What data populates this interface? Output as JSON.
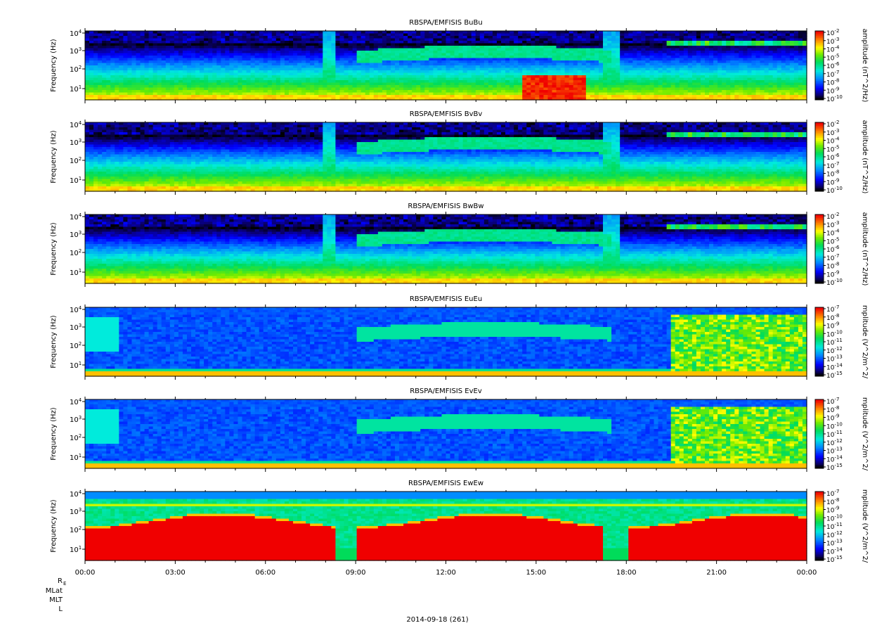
{
  "chart_data": [
    {
      "type": "heatmap",
      "title": "RBSPA/EMFISIS  BuBu",
      "ylabel": "Frequency (Hz)",
      "y_scale": "log",
      "y_ticks": [
        "10^1",
        "10^2",
        "10^3",
        "10^4"
      ],
      "colorbar_label": "amplitude (nT^2/Hz)",
      "colorbar_ticks": [
        "10^-2",
        "10^-3",
        "10^-4",
        "10^-5",
        "10^-6",
        "10^-7",
        "10^-8",
        "10^-9",
        "10^-10"
      ],
      "colorscale": "rainbow",
      "time_range": [
        "00:00",
        "00:00"
      ]
    },
    {
      "type": "heatmap",
      "title": "RBSPA/EMFISIS  BvBv",
      "ylabel": "Frequency (Hz)",
      "y_scale": "log",
      "y_ticks": [
        "10^1",
        "10^2",
        "10^3",
        "10^4"
      ],
      "colorbar_label": "amplitude (nT^2/Hz)",
      "colorbar_ticks": [
        "10^-2",
        "10^-3",
        "10^-4",
        "10^-5",
        "10^-6",
        "10^-7",
        "10^-8",
        "10^-9",
        "10^-10"
      ],
      "colorscale": "rainbow",
      "time_range": [
        "00:00",
        "00:00"
      ]
    },
    {
      "type": "heatmap",
      "title": "RBSPA/EMFISIS  BwBw",
      "ylabel": "Frequency (Hz)",
      "y_scale": "log",
      "y_ticks": [
        "10^1",
        "10^2",
        "10^3",
        "10^4"
      ],
      "colorbar_label": "amplitude (nT^2/Hz)",
      "colorbar_ticks": [
        "10^-2",
        "10^-3",
        "10^-4",
        "10^-5",
        "10^-6",
        "10^-7",
        "10^-8",
        "10^-9",
        "10^-10"
      ],
      "colorscale": "rainbow",
      "time_range": [
        "00:00",
        "00:00"
      ]
    },
    {
      "type": "heatmap",
      "title": "RBSPA/EMFISIS  EuEu",
      "ylabel": "Frequency (Hz)",
      "y_scale": "log",
      "y_ticks": [
        "10^1",
        "10^2",
        "10^3",
        "10^4"
      ],
      "colorbar_label": "mplitude (V^2/m^2/",
      "colorbar_ticks": [
        "10^-7",
        "10^-8",
        "10^-9",
        "10^-10",
        "10^-11",
        "10^-12",
        "10^-13",
        "10^-14",
        "10^-15"
      ],
      "colorscale": "rainbow",
      "time_range": [
        "00:00",
        "00:00"
      ]
    },
    {
      "type": "heatmap",
      "title": "RBSPA/EMFISIS  EvEv",
      "ylabel": "Frequency (Hz)",
      "y_scale": "log",
      "y_ticks": [
        "10^1",
        "10^2",
        "10^3",
        "10^4"
      ],
      "colorbar_label": "mplitude (V^2/m^2/",
      "colorbar_ticks": [
        "10^-7",
        "10^-8",
        "10^-9",
        "10^-10",
        "10^-11",
        "10^-12",
        "10^-13",
        "10^-14",
        "10^-15"
      ],
      "colorscale": "rainbow",
      "time_range": [
        "00:00",
        "00:00"
      ]
    },
    {
      "type": "heatmap",
      "title": "RBSPA/EMFISIS  EwEw",
      "ylabel": "Frequency (Hz)",
      "y_scale": "log",
      "y_ticks": [
        "10^1",
        "10^2",
        "10^3",
        "10^4"
      ],
      "colorbar_label": "mplitude (V^2/m^2/",
      "colorbar_ticks": [
        "10^-7",
        "10^-8",
        "10^-9",
        "10^-10",
        "10^-11",
        "10^-12",
        "10^-13",
        "10^-14",
        "10^-15"
      ],
      "colorscale": "rainbow",
      "time_range": [
        "00:00",
        "00:00"
      ]
    }
  ],
  "x_axis": {
    "ticks": [
      "00:00",
      "03:00",
      "06:00",
      "09:00",
      "12:00",
      "15:00",
      "18:00",
      "21:00",
      "00:00"
    ]
  },
  "ephemeris_labels": [
    "R",
    "MLat",
    "MLT",
    "L"
  ],
  "ephemeris_subscript": "E",
  "date_label": "2014-09-18 (261)"
}
